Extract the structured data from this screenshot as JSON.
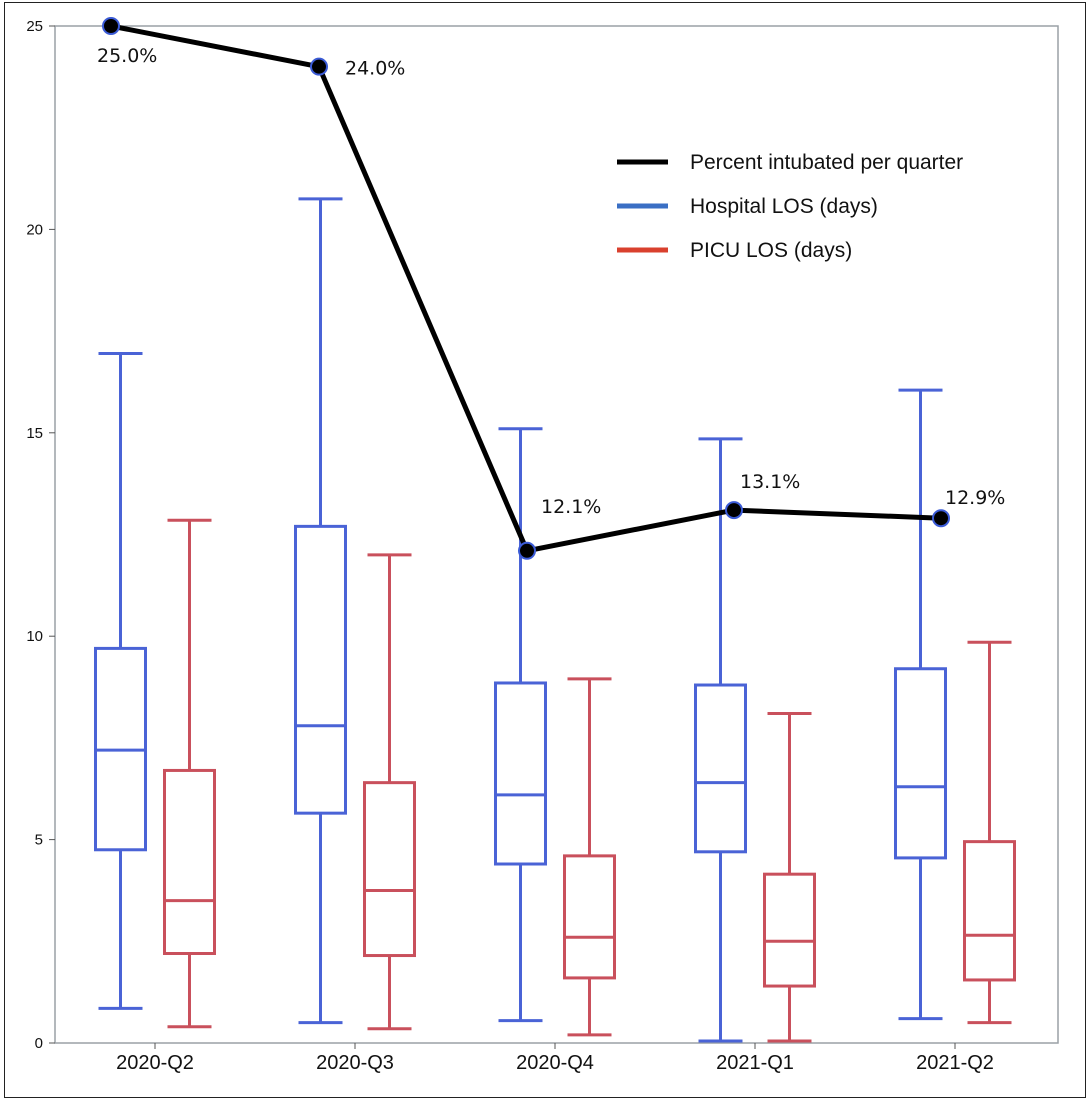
{
  "chart_data": {
    "type": "box+line",
    "title": "",
    "xlabel": "",
    "ylabel": "",
    "ylim": [
      0,
      25
    ],
    "yticks": [
      0,
      5,
      10,
      15,
      20,
      25
    ],
    "categories": [
      "2020-Q2",
      "2020-Q3",
      "2020-Q4",
      "2021-Q1",
      "2021-Q2"
    ],
    "legend_position": "top-right",
    "grid": false,
    "line_series": {
      "name": "Percent intubated per quarter",
      "color": "#000000",
      "values": [
        25.0,
        24.0,
        12.1,
        13.1,
        12.9
      ],
      "labels": [
        "25.0%",
        "24.0%",
        "12.1%",
        "13.1%",
        "12.9%"
      ]
    },
    "box_series": [
      {
        "name": "Hospital LOS (days)",
        "color": "#4a63d6",
        "boxes": [
          {
            "min": 0.85,
            "q1": 4.75,
            "median": 7.2,
            "q3": 9.7,
            "max": 16.95
          },
          {
            "min": 0.5,
            "q1": 5.65,
            "median": 7.8,
            "q3": 12.7,
            "max": 20.75
          },
          {
            "min": 0.55,
            "q1": 4.4,
            "median": 6.1,
            "q3": 8.85,
            "max": 15.1
          },
          {
            "min": 0.05,
            "q1": 4.7,
            "median": 6.4,
            "q3": 8.8,
            "max": 14.85
          },
          {
            "min": 0.6,
            "q1": 4.55,
            "median": 6.3,
            "q3": 9.2,
            "max": 16.05
          }
        ]
      },
      {
        "name": "PICU LOS (days)",
        "color": "#c9505c",
        "boxes": [
          {
            "min": 0.4,
            "q1": 2.2,
            "median": 3.5,
            "q3": 6.7,
            "max": 12.85
          },
          {
            "min": 0.35,
            "q1": 2.15,
            "median": 3.75,
            "q3": 6.4,
            "max": 12.0
          },
          {
            "min": 0.2,
            "q1": 1.6,
            "median": 2.6,
            "q3": 4.6,
            "max": 8.95
          },
          {
            "min": 0.05,
            "q1": 1.4,
            "median": 2.5,
            "q3": 4.15,
            "max": 8.1
          },
          {
            "min": 0.5,
            "q1": 1.55,
            "median": 2.65,
            "q3": 4.95,
            "max": 9.85
          }
        ]
      }
    ],
    "legend": [
      {
        "label": "Percent intubated per quarter",
        "color": "#000000"
      },
      {
        "label": "Hospital LOS (days)",
        "color": "#3a6fc4"
      },
      {
        "label": "PICU LOS (days)",
        "color": "#d9402e"
      }
    ]
  }
}
